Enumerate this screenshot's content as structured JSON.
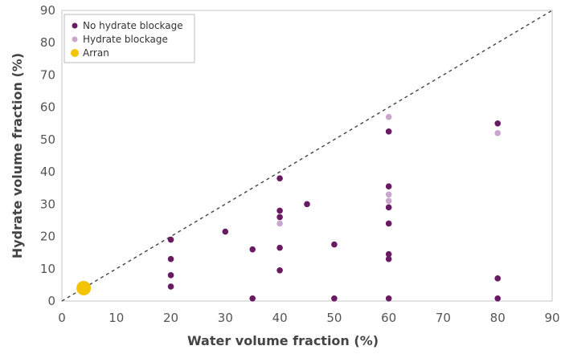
{
  "chart_data": {
    "type": "scatter",
    "title": "",
    "xlabel": "Water volume fraction (%)",
    "ylabel": "Hydrate volume fraction (%)",
    "xlim": [
      0,
      90
    ],
    "ylim": [
      0,
      90
    ],
    "xticks": [
      "0",
      "10",
      "20",
      "30",
      "40",
      "50",
      "60",
      "70",
      "80",
      "90"
    ],
    "yticks": [
      "0",
      "10",
      "20",
      "30",
      "40",
      "50",
      "60",
      "70",
      "80",
      "90"
    ],
    "grid": false,
    "legend_position": "top-left",
    "reference_line": {
      "style": "dashed",
      "from": [
        0,
        0
      ],
      "to": [
        90,
        90
      ],
      "color": "#444444"
    },
    "series": [
      {
        "name": "No hydrate blockage",
        "color": "#6a1a62",
        "points": [
          [
            20,
            19
          ],
          [
            20,
            13
          ],
          [
            20,
            8
          ],
          [
            20,
            4.5
          ],
          [
            30,
            21.5
          ],
          [
            35,
            16
          ],
          [
            35,
            0.8
          ],
          [
            40,
            38
          ],
          [
            40,
            28
          ],
          [
            40,
            26
          ],
          [
            40,
            16.5
          ],
          [
            40,
            9.5
          ],
          [
            45,
            30
          ],
          [
            50,
            17.5
          ],
          [
            50,
            0.8
          ],
          [
            60,
            52.5
          ],
          [
            60,
            35.5
          ],
          [
            60,
            29
          ],
          [
            60,
            24
          ],
          [
            60,
            14.5
          ],
          [
            60,
            13
          ],
          [
            60,
            0.8
          ],
          [
            80,
            55
          ],
          [
            80,
            7
          ],
          [
            80,
            0.8
          ]
        ]
      },
      {
        "name": "Hydrate blockage",
        "color": "#c9a6cc",
        "points": [
          [
            40,
            24
          ],
          [
            60,
            57
          ],
          [
            60,
            33
          ],
          [
            60,
            31
          ],
          [
            80,
            52
          ]
        ]
      },
      {
        "name": "Arran",
        "color": "#f4c400",
        "points": [
          [
            4,
            4
          ]
        ]
      }
    ]
  }
}
